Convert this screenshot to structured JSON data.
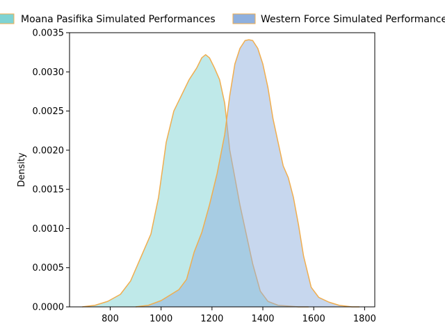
{
  "chart_data": {
    "type": "area",
    "title": "",
    "xlabel": "",
    "ylabel": "Density",
    "xlim": [
      640,
      1840
    ],
    "ylim": [
      0,
      0.0035
    ],
    "x_ticks": [
      800,
      1000,
      1200,
      1400,
      1600,
      1800
    ],
    "x_tick_labels": [
      "800",
      "1000",
      "1200",
      "1400",
      "1600",
      "1800"
    ],
    "y_ticks": [
      0,
      0.0005,
      0.001,
      0.0015,
      0.002,
      0.0025,
      0.003,
      0.0035
    ],
    "y_tick_labels": [
      "0.0000",
      "0.0005",
      "0.0010",
      "0.0015",
      "0.0020",
      "0.0025",
      "0.0030",
      "0.0035"
    ],
    "grid": false,
    "legend_position": "top (above plot, outside)",
    "outline_color": "#f0ad4e",
    "series": [
      {
        "name": "Moana Pasifika Simulated Performances",
        "color": "#7fd3d3",
        "fill_opacity": 0.5,
        "x": [
          690,
          740,
          790,
          840,
          880,
          920,
          960,
          990,
          1020,
          1050,
          1080,
          1110,
          1140,
          1160,
          1175,
          1190,
          1210,
          1230,
          1250,
          1270,
          1290,
          1310,
          1330,
          1360,
          1390,
          1420,
          1460,
          1500,
          1540,
          1580
        ],
        "y": [
          0.0,
          2e-05,
          7e-05,
          0.00016,
          0.00033,
          0.00063,
          0.00093,
          0.0014,
          0.0021,
          0.0025,
          0.0027,
          0.0029,
          0.00305,
          0.00318,
          0.00322,
          0.00318,
          0.00305,
          0.0029,
          0.0026,
          0.002,
          0.00165,
          0.0013,
          0.001,
          0.00055,
          0.0002,
          7e-05,
          2e-05,
          1e-05,
          0.0,
          0.0
        ]
      },
      {
        "name": "Western Force Simulated Performances",
        "color": "#8fb0de",
        "fill_opacity": 0.5,
        "x": [
          900,
          950,
          1000,
          1040,
          1070,
          1100,
          1130,
          1160,
          1190,
          1220,
          1250,
          1270,
          1290,
          1310,
          1330,
          1345,
          1360,
          1380,
          1400,
          1420,
          1440,
          1460,
          1480,
          1500,
          1520,
          1540,
          1560,
          1590,
          1620,
          1660,
          1700,
          1750,
          1780
        ],
        "y": [
          0.0,
          2e-05,
          8e-05,
          0.00016,
          0.00022,
          0.00035,
          0.0007,
          0.00095,
          0.0013,
          0.0017,
          0.0022,
          0.0027,
          0.0031,
          0.0033,
          0.0034,
          0.00341,
          0.0034,
          0.0033,
          0.0031,
          0.0028,
          0.0024,
          0.0021,
          0.0018,
          0.00165,
          0.0014,
          0.00105,
          0.00065,
          0.00025,
          0.00012,
          6e-05,
          2e-05,
          0.0,
          0.0
        ]
      }
    ]
  }
}
